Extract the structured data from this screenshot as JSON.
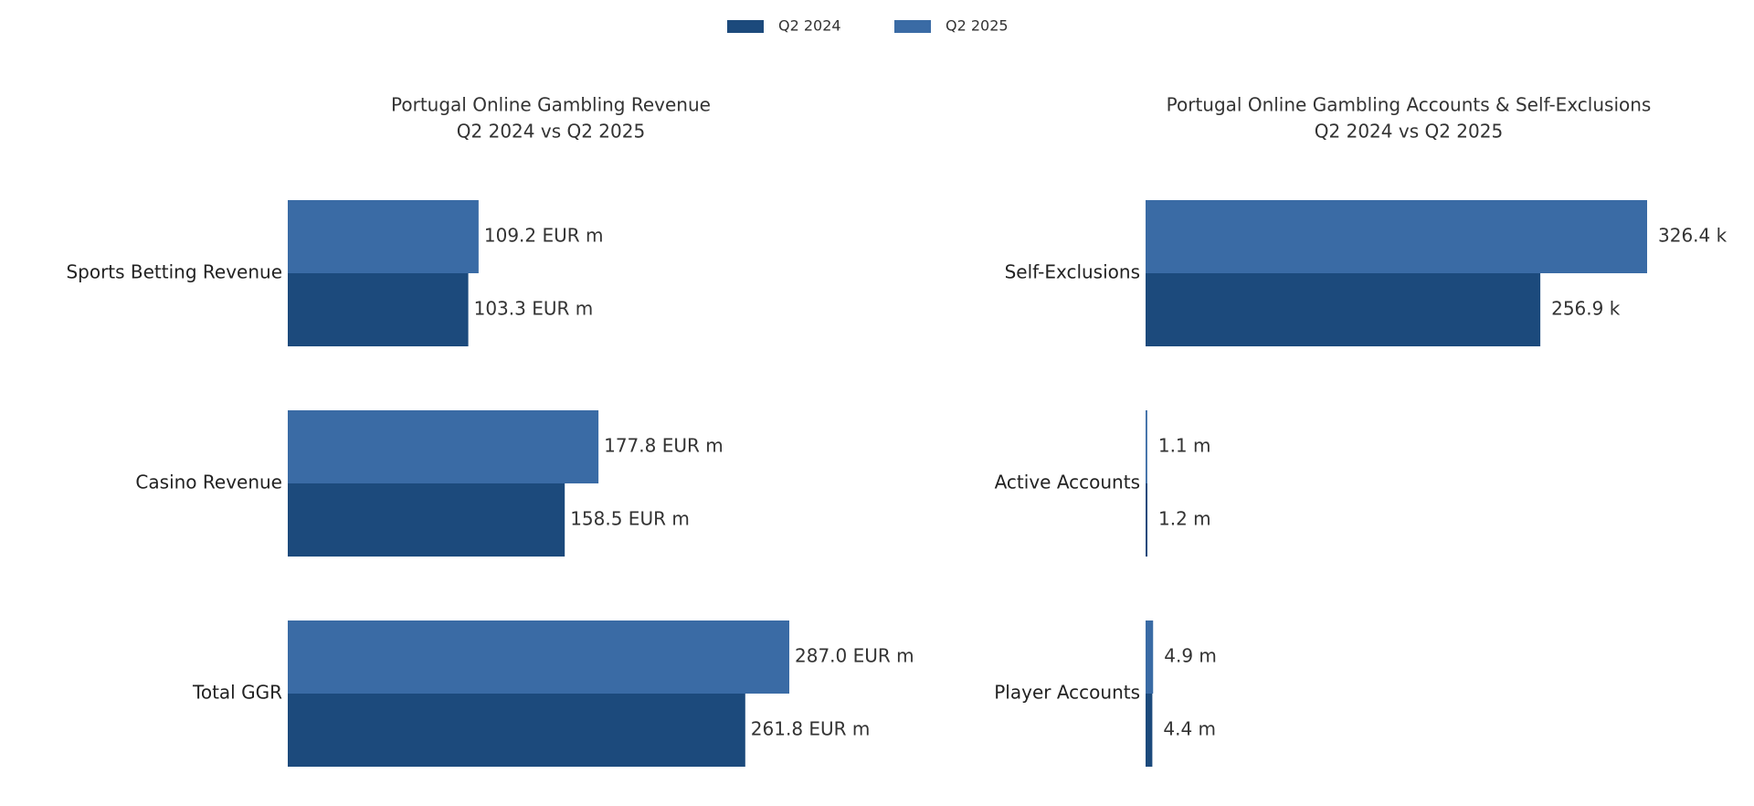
{
  "chart_data": [
    {
      "type": "barh",
      "title": "Portugal Online Gambling Revenue",
      "subtitle": "Q2 2024 vs Q2 2025",
      "categories": [
        "Sports Betting Revenue",
        "Casino Revenue",
        "Total GGR"
      ],
      "series": [
        {
          "name": "Q2 2024",
          "color": "#1c4a7c",
          "values": [
            103.3,
            158.5,
            261.8
          ],
          "value_labels": [
            "103.3 EUR m",
            "158.5 EUR m",
            "261.8 EUR m"
          ]
        },
        {
          "name": "Q2 2025",
          "color": "#3a6ba5",
          "values": [
            109.2,
            177.8,
            287.0
          ],
          "value_labels": [
            "109.2 EUR m",
            "177.8 EUR m",
            "287.0 EUR m"
          ]
        }
      ]
    },
    {
      "type": "barh",
      "title": "Portugal Online Gambling Accounts & Self-Exclusions",
      "subtitle": "Q2 2024 vs Q2 2025",
      "categories": [
        "Self-Exclusions",
        "Active Accounts",
        "Player Accounts"
      ],
      "series": [
        {
          "name": "Q2 2024",
          "color": "#1c4a7c",
          "values": [
            256.9,
            1.2,
            4.4
          ],
          "value_labels": [
            "256.9 k",
            "1.2 m",
            "4.4 m"
          ]
        },
        {
          "name": "Q2 2025",
          "color": "#3a6ba5",
          "values": [
            326.4,
            1.1,
            4.9
          ],
          "value_labels": [
            "326.4 k",
            "1.1 m",
            "4.9 m"
          ]
        }
      ]
    }
  ]
}
